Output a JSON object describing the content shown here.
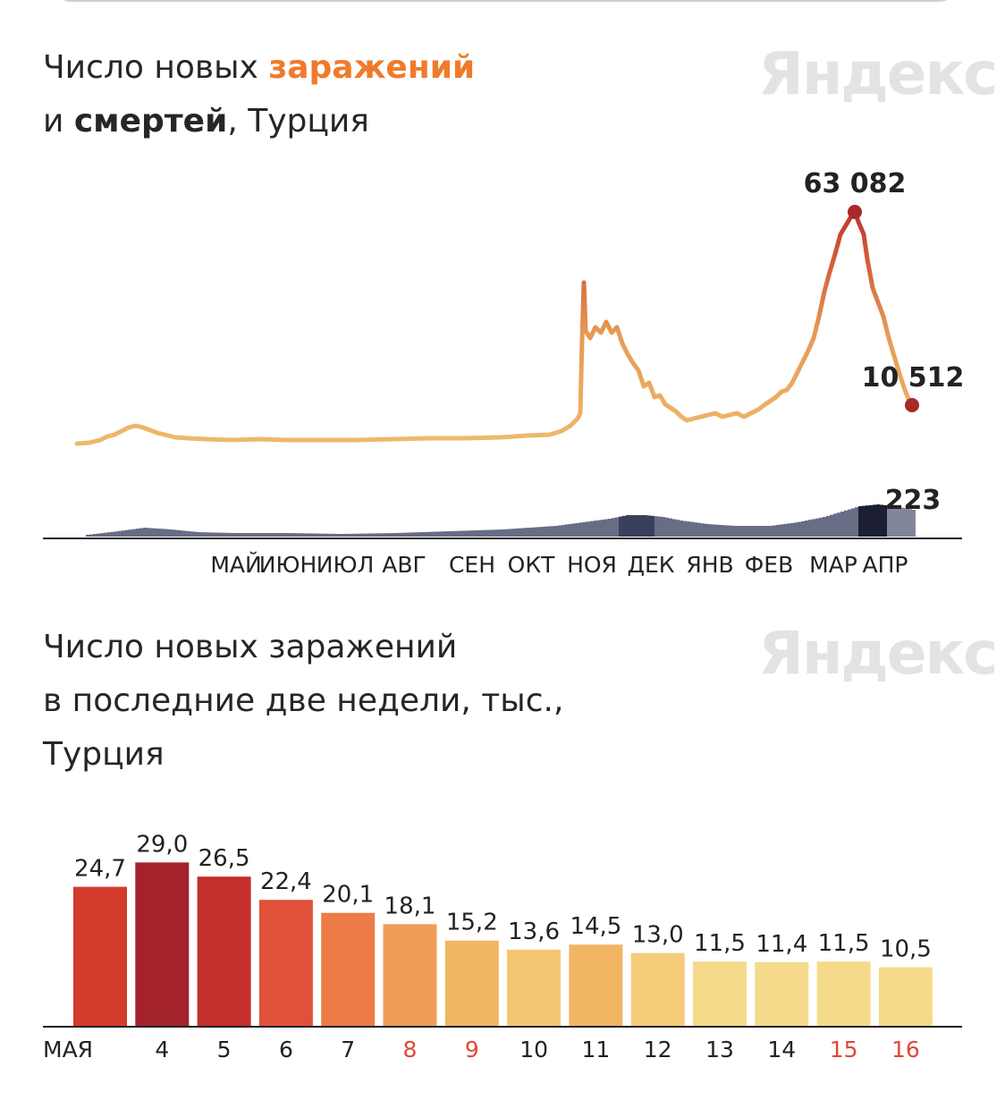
{
  "chart1": {
    "title_part1": "Число новых ",
    "title_highlight": "заражений",
    "title_part2": "и ",
    "title_bold": "смертей",
    "title_part3": ", Турция",
    "watermark": "Яндекс",
    "peak_label": "63 082",
    "last_label": "10 512",
    "deaths_label": "223",
    "month_labels": [
      "МАЙ",
      "ИЮН",
      "ИЮЛ",
      "АВГ",
      "СЕН",
      "ОКТ",
      "НОЯ",
      "ДЕК",
      "ЯНВ",
      "ФЕВ",
      "МАР",
      "АПР"
    ],
    "colors": {
      "low": "#eeb86a",
      "high": "#c0392b",
      "deaths": "#4d5370",
      "deaths_dark": "#1c1f33",
      "axis": "#222222"
    }
  },
  "chart2": {
    "title_lines": [
      "Число новых заражений",
      "в последние две недели, тыс.,",
      "Турция"
    ],
    "watermark": "Яндекс"
  },
  "chart_data": [
    {
      "type": "line",
      "title": "Число новых заражений и смертей, Турция",
      "x": [
        "МАЙ",
        "ИЮН",
        "ИЮЛ",
        "АВГ",
        "СЕН",
        "ОКТ",
        "НОЯ",
        "ДЕК",
        "ЯНВ",
        "ФЕВ",
        "МАР",
        "АПР"
      ],
      "series": [
        {
          "name": "заражений",
          "peak": 63082,
          "last": 10512
        },
        {
          "name": "смертей",
          "last": 223
        }
      ],
      "legend": "none",
      "grid": false
    },
    {
      "type": "bar",
      "title": "Число новых заражений в последние две недели, тыс., Турция",
      "categories": [
        "МАЯ",
        "4",
        "5",
        "6",
        "7",
        "8",
        "9",
        "10",
        "11",
        "12",
        "13",
        "14",
        "15",
        "16"
      ],
      "weekend_categories": [
        "8",
        "9",
        "15",
        "16"
      ],
      "values": [
        24.7,
        29.0,
        26.5,
        22.4,
        20.1,
        18.1,
        15.2,
        13.6,
        14.5,
        13.0,
        11.5,
        11.4,
        11.5,
        10.5
      ],
      "value_labels": [
        "24,7",
        "29,0",
        "26,5",
        "22,4",
        "20,1",
        "18,1",
        "15,2",
        "13,6",
        "14,5",
        "13,0",
        "11,5",
        "11,4",
        "11,5",
        "10,5"
      ],
      "colors": [
        "#d23a2c",
        "#a3222c",
        "#c42e2c",
        "#e0503a",
        "#ee7c48",
        "#f09c55",
        "#f2b562",
        "#f4c672",
        "#f2b562",
        "#f5cb78",
        "#f5da8b",
        "#f5da8b",
        "#f5da8b",
        "#f5da8b"
      ],
      "weekday_label_color": "#222222",
      "weekend_label_color": "#e0483a",
      "ylim": [
        0,
        30
      ],
      "grid": false
    }
  ]
}
